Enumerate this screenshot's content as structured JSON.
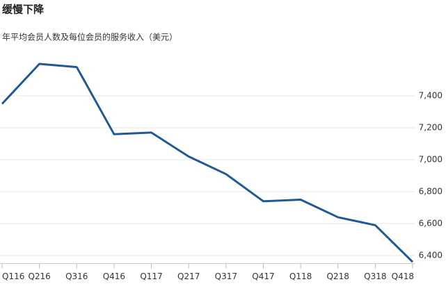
{
  "chart_data": {
    "type": "line",
    "title": "缓慢下降",
    "subtitle": "年平均会员人数及每位会员的服务收入（美元）",
    "categories": [
      "Q116",
      "Q216",
      "Q316",
      "Q416",
      "Q117",
      "Q217",
      "Q317",
      "Q417",
      "Q118",
      "Q218",
      "Q318",
      "Q418"
    ],
    "series": [
      {
        "name": null,
        "color": "#1f5a96",
        "values": [
          7350,
          7600,
          7580,
          7160,
          7170,
          7020,
          6910,
          6740,
          6750,
          6640,
          6590,
          6360
        ]
      }
    ],
    "ylim": [
      6350,
      7650
    ],
    "yticks": [
      {
        "value": 6400,
        "label": "6,400"
      },
      {
        "value": 6600,
        "label": "6,600"
      },
      {
        "value": 6800,
        "label": "6,800"
      },
      {
        "value": 7000,
        "label": "7,000"
      },
      {
        "value": 7200,
        "label": "7,200"
      },
      {
        "value": 7400,
        "label": "7,400"
      }
    ],
    "grid": true,
    "y_axis_side": "right"
  }
}
